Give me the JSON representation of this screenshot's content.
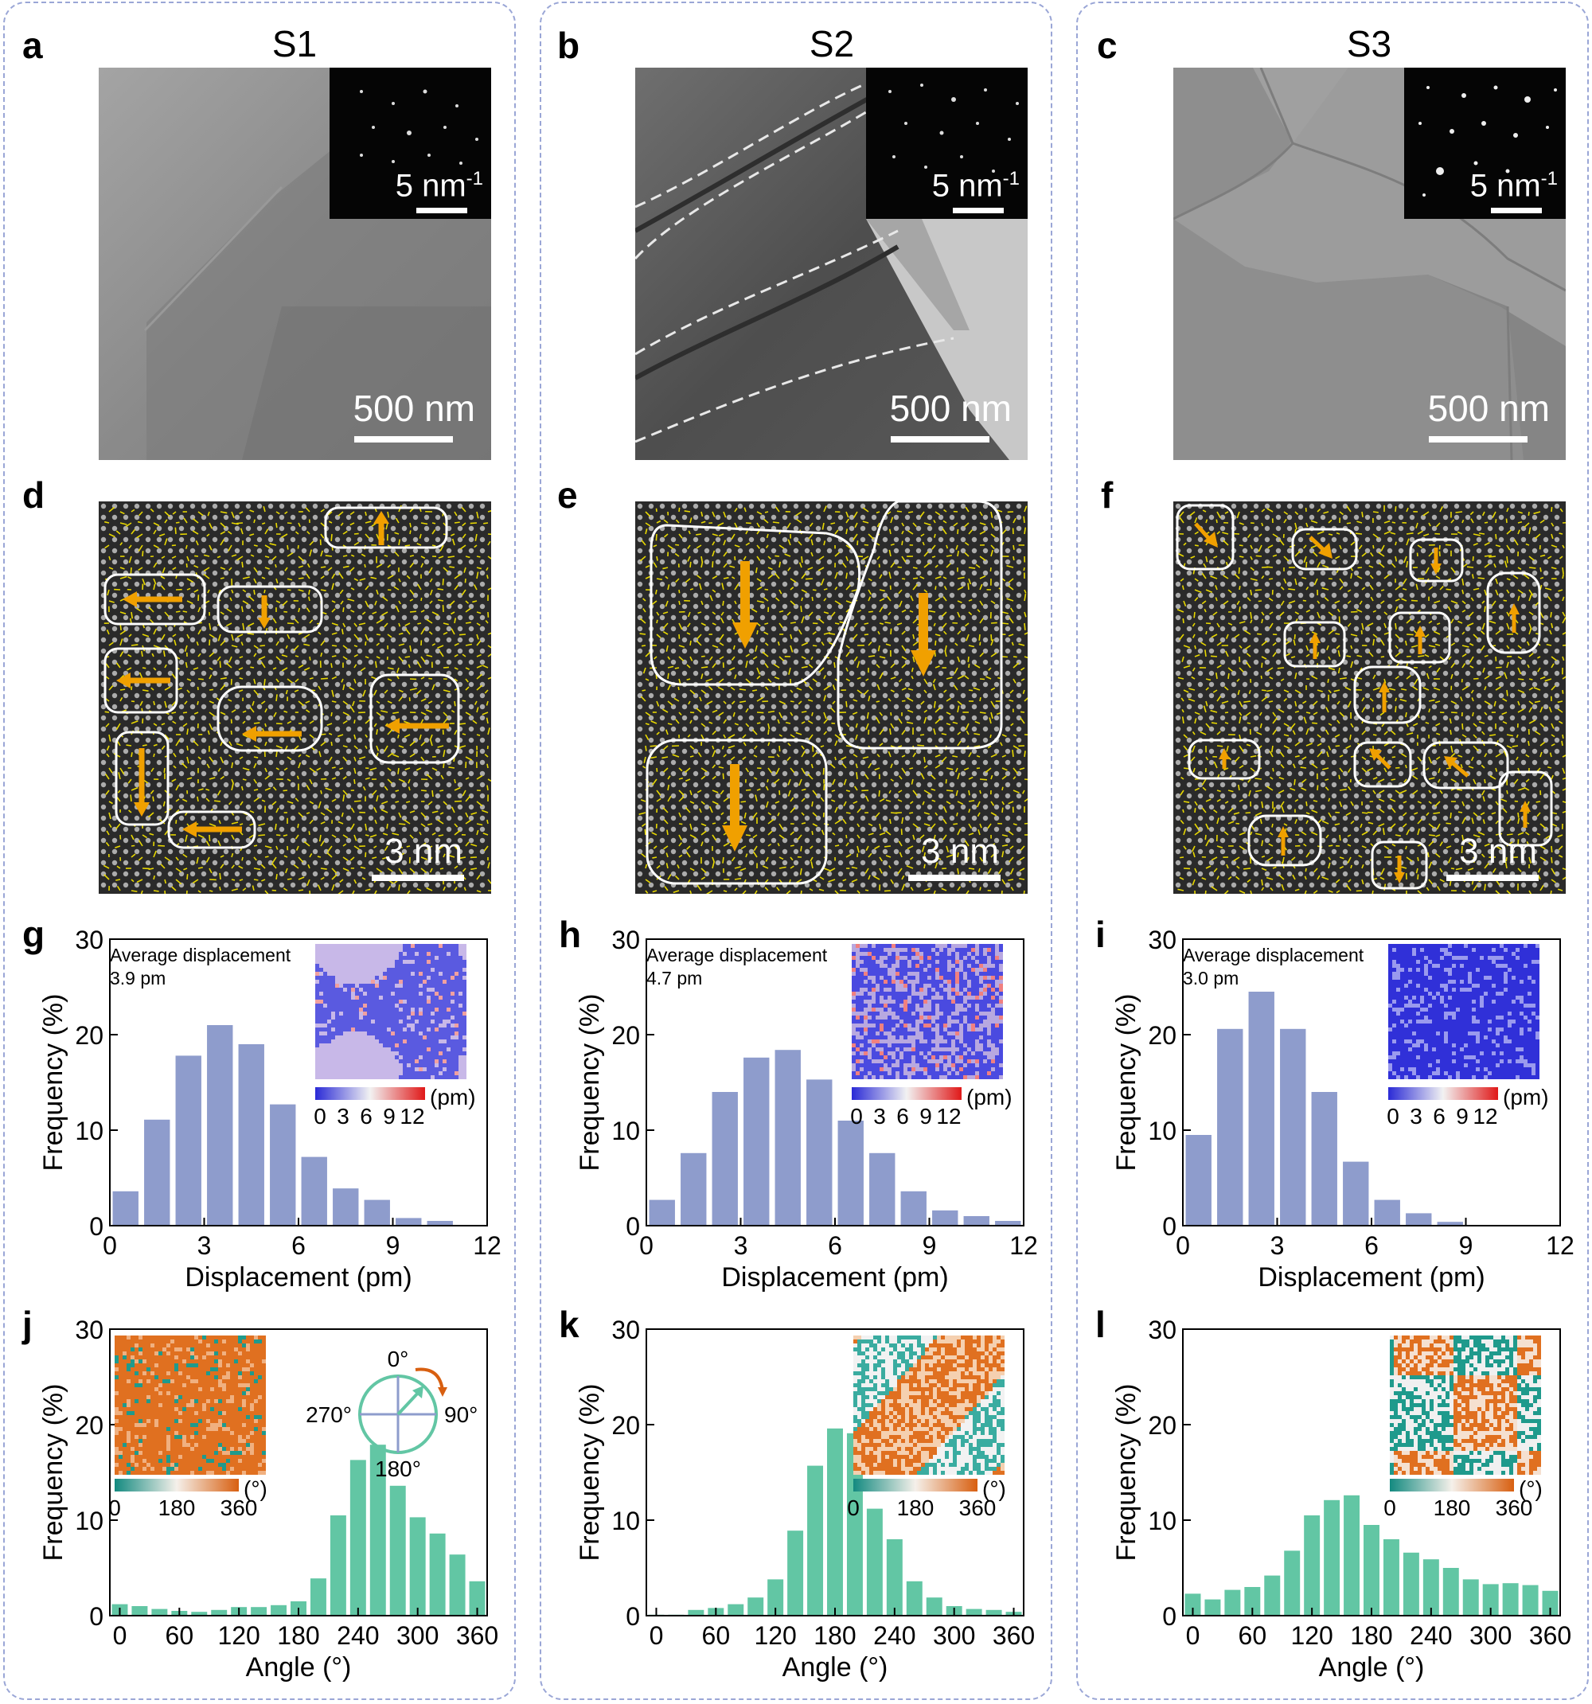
{
  "panels": {
    "a": {
      "label": "a",
      "sample": "S1",
      "saed_scale": "5 nm",
      "saed_exp": "-1",
      "scale": "500 nm"
    },
    "b": {
      "label": "b",
      "sample": "S2",
      "saed_scale": "5 nm",
      "saed_exp": "-1",
      "scale": "500 nm"
    },
    "c": {
      "label": "c",
      "sample": "S3",
      "saed_scale": "5 nm",
      "saed_exp": "-1",
      "scale": "500 nm"
    },
    "d": {
      "label": "d",
      "scale": "3 nm"
    },
    "e": {
      "label": "e",
      "scale": "3 nm"
    },
    "f": {
      "label": "f",
      "scale": "3 nm"
    }
  },
  "colors": {
    "disp_bar": "#8e9ccc",
    "angle_bar": "#62c6a4",
    "arrow": "#f0a000",
    "teal": "#138a80",
    "orange": "#d85f10",
    "blue": "#2a2ad6",
    "red": "#e01818"
  },
  "compass": {
    "top": "0°",
    "right": "90°",
    "bottom": "180°",
    "left": "270°"
  },
  "chart_data": [
    {
      "id": "g",
      "label": "g",
      "type": "bar",
      "title": "",
      "xlabel": "Displacement (pm)",
      "ylabel": "Frequency (%)",
      "xlim": [
        0,
        12
      ],
      "ylim": [
        0,
        30
      ],
      "xticks": [
        "0",
        "3",
        "6",
        "9",
        "12"
      ],
      "yticks": [
        "0",
        "10",
        "20",
        "30"
      ],
      "x": [
        0.5,
        1.5,
        2.5,
        3.5,
        4.5,
        5.5,
        6.5,
        7.5,
        8.5,
        9.5,
        10.5,
        11.5
      ],
      "values": [
        3.6,
        11.1,
        17.8,
        21.0,
        19.0,
        12.7,
        7.2,
        3.9,
        2.7,
        0.8,
        0.5,
        0
      ],
      "annotation_line1": "Average displacement",
      "annotation_line2": "3.9 pm",
      "inset": "displacement",
      "colorbar_ticks": [
        "0",
        "3",
        "6",
        "9",
        "12"
      ],
      "colorbar_unit": "(pm)"
    },
    {
      "id": "h",
      "label": "h",
      "type": "bar",
      "title": "",
      "xlabel": "Displacement (pm)",
      "ylabel": "Frequency (%)",
      "xlim": [
        0,
        12
      ],
      "ylim": [
        0,
        30
      ],
      "xticks": [
        "0",
        "3",
        "6",
        "9",
        "12"
      ],
      "yticks": [
        "0",
        "10",
        "20",
        "30"
      ],
      "x": [
        0.5,
        1.5,
        2.5,
        3.5,
        4.5,
        5.5,
        6.5,
        7.5,
        8.5,
        9.5,
        10.5,
        11.5
      ],
      "values": [
        2.7,
        7.6,
        14.0,
        17.6,
        18.4,
        15.3,
        11.0,
        7.6,
        3.6,
        1.6,
        1.0,
        0.5
      ],
      "annotation_line1": "Average displacement",
      "annotation_line2": "4.7 pm",
      "inset": "displacement",
      "colorbar_ticks": [
        "0",
        "3",
        "6",
        "9",
        "12"
      ],
      "colorbar_unit": "(pm)"
    },
    {
      "id": "i",
      "label": "i",
      "type": "bar",
      "title": "",
      "xlabel": "Displacement (pm)",
      "ylabel": "Frequency (%)",
      "xlim": [
        0,
        12
      ],
      "ylim": [
        0,
        30
      ],
      "xticks": [
        "0",
        "3",
        "6",
        "9",
        "12"
      ],
      "yticks": [
        "0",
        "10",
        "20",
        "30"
      ],
      "x": [
        0.5,
        1.5,
        2.5,
        3.5,
        4.5,
        5.5,
        6.5,
        7.5,
        8.5,
        9.5,
        10.5,
        11.5
      ],
      "values": [
        9.5,
        20.6,
        24.5,
        20.6,
        14.0,
        6.7,
        2.7,
        1.3,
        0.4,
        0,
        0,
        0
      ],
      "annotation_line1": "Average displacement",
      "annotation_line2": "3.0 pm",
      "inset": "displacement",
      "colorbar_ticks": [
        "0",
        "3",
        "6",
        "9",
        "12"
      ],
      "colorbar_unit": "(pm)"
    },
    {
      "id": "j",
      "label": "j",
      "type": "bar",
      "title": "",
      "xlabel": "Angle (°)",
      "ylabel": "Frequency (%)",
      "xlim": [
        -10,
        370
      ],
      "ylim": [
        0,
        30
      ],
      "xticks": [
        "0",
        "60",
        "120",
        "180",
        "240",
        "300",
        "360"
      ],
      "yticks": [
        "0",
        "10",
        "20",
        "30"
      ],
      "x": [
        0,
        20,
        40,
        60,
        80,
        100,
        120,
        140,
        160,
        180,
        200,
        220,
        240,
        260,
        280,
        300,
        320,
        340,
        360
      ],
      "values": [
        1.2,
        1.0,
        0.7,
        0.5,
        0.4,
        0.6,
        0.9,
        0.9,
        1.1,
        1.5,
        3.9,
        10.5,
        16.3,
        17.9,
        13.6,
        10.3,
        8.6,
        6.4,
        3.6
      ],
      "inset": "angle",
      "colorbar_ticks": [
        "0",
        "180",
        "360"
      ],
      "colorbar_unit": "(°)",
      "compass": true
    },
    {
      "id": "k",
      "label": "k",
      "type": "bar",
      "title": "",
      "xlabel": "Angle (°)",
      "ylabel": "Frequency (%)",
      "xlim": [
        -10,
        370
      ],
      "ylim": [
        0,
        30
      ],
      "xticks": [
        "0",
        "60",
        "120",
        "180",
        "240",
        "300",
        "360"
      ],
      "yticks": [
        "0",
        "10",
        "20",
        "30"
      ],
      "x": [
        0,
        20,
        40,
        60,
        80,
        100,
        120,
        140,
        160,
        180,
        200,
        220,
        240,
        260,
        280,
        300,
        320,
        340,
        360
      ],
      "values": [
        0.1,
        0.1,
        0.6,
        0.8,
        1.2,
        1.9,
        3.8,
        8.9,
        15.7,
        19.6,
        19.1,
        11.2,
        8.0,
        3.6,
        1.9,
        1.0,
        0.7,
        0.6,
        0.4
      ],
      "inset": "angle",
      "colorbar_ticks": [
        "0",
        "180",
        "360"
      ],
      "colorbar_unit": "(°)"
    },
    {
      "id": "l",
      "label": "l",
      "type": "bar",
      "title": "",
      "xlabel": "Angle (°)",
      "ylabel": "Frequency (%)",
      "xlim": [
        -10,
        370
      ],
      "ylim": [
        0,
        30
      ],
      "xticks": [
        "0",
        "60",
        "120",
        "180",
        "240",
        "300",
        "360"
      ],
      "yticks": [
        "0",
        "10",
        "20",
        "30"
      ],
      "x": [
        0,
        20,
        40,
        60,
        80,
        100,
        120,
        140,
        160,
        180,
        200,
        220,
        240,
        260,
        280,
        300,
        320,
        340,
        360
      ],
      "values": [
        2.3,
        1.7,
        2.7,
        3.0,
        4.2,
        6.8,
        10.5,
        12.1,
        12.6,
        9.5,
        8.0,
        6.6,
        5.9,
        5.0,
        3.8,
        3.3,
        3.4,
        3.2,
        2.6
      ],
      "inset": "angle",
      "colorbar_ticks": [
        "0",
        "180",
        "360"
      ],
      "colorbar_unit": "(°)"
    }
  ]
}
